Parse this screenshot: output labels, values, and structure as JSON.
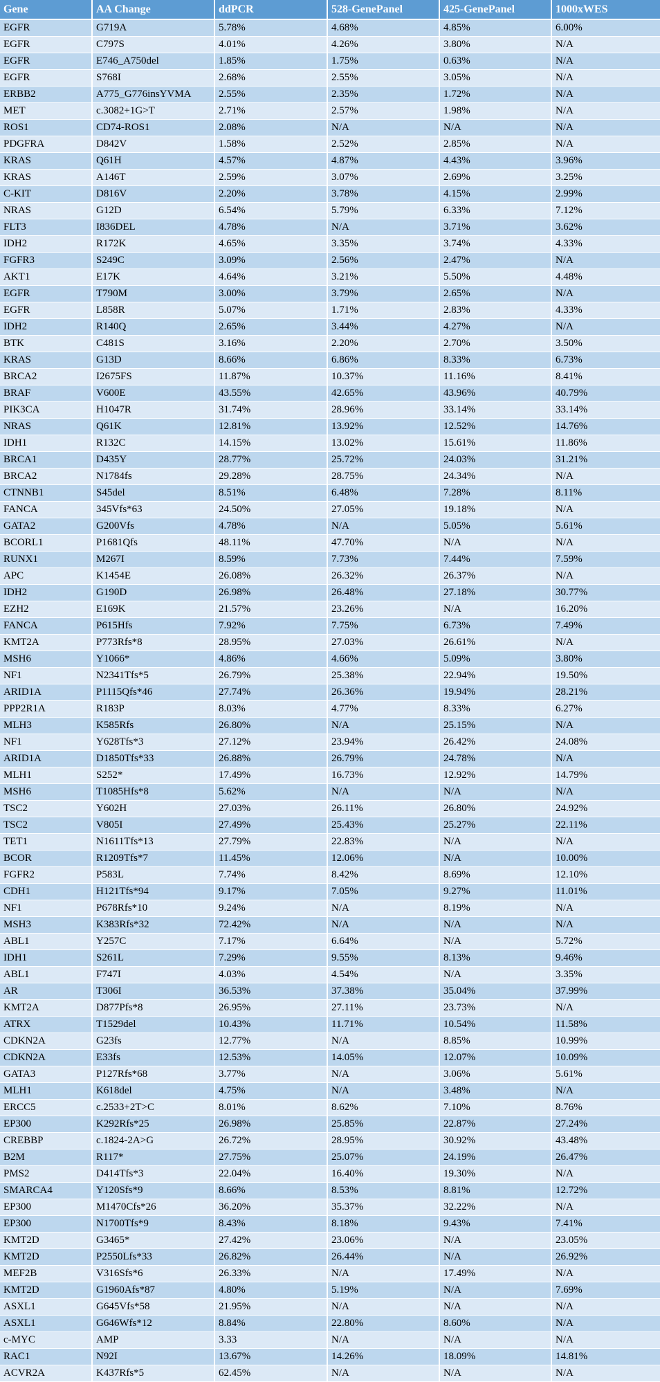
{
  "colors": {
    "header_bg": "#5d9cd3",
    "header_text": "#ffffff",
    "row_odd_bg": "#bdd7ee",
    "row_even_bg": "#dce9f6",
    "body_text": "#000000",
    "grid_border": "#ffffff"
  },
  "table": {
    "columns": [
      "Gene",
      "AA Change",
      "ddPCR",
      "528-GenePanel",
      "425-GenePanel",
      "1000xWES"
    ],
    "rows": [
      [
        "EGFR",
        "G719A",
        "5.78%",
        "4.68%",
        "4.85%",
        "6.00%"
      ],
      [
        "EGFR",
        "C797S",
        "4.01%",
        "4.26%",
        "3.80%",
        "N/A"
      ],
      [
        "EGFR",
        "E746_A750del",
        "1.85%",
        "1.75%",
        "0.63%",
        "N/A"
      ],
      [
        "EGFR",
        "S768I",
        "2.68%",
        "2.55%",
        "3.05%",
        "N/A"
      ],
      [
        "ERBB2",
        "A775_G776insYVMA",
        "2.55%",
        "2.35%",
        "1.72%",
        "N/A"
      ],
      [
        "MET",
        "c.3082+1G>T",
        "2.71%",
        "2.57%",
        "1.98%",
        "N/A"
      ],
      [
        "ROS1",
        "CD74-ROS1",
        "2.08%",
        "N/A",
        "N/A",
        "N/A"
      ],
      [
        "PDGFRA",
        "D842V",
        "1.58%",
        "2.52%",
        "2.85%",
        "N/A"
      ],
      [
        "KRAS",
        "Q61H",
        "4.57%",
        "4.87%",
        "4.43%",
        "3.96%"
      ],
      [
        "KRAS",
        "A146T",
        "2.59%",
        "3.07%",
        "2.69%",
        "3.25%"
      ],
      [
        "C-KIT",
        "D816V",
        "2.20%",
        "3.78%",
        "4.15%",
        "2.99%"
      ],
      [
        "NRAS",
        "G12D",
        "6.54%",
        "5.79%",
        "6.33%",
        "7.12%"
      ],
      [
        "FLT3",
        "I836DEL",
        "4.78%",
        "N/A",
        "3.71%",
        "3.62%"
      ],
      [
        "IDH2",
        "R172K",
        "4.65%",
        "3.35%",
        "3.74%",
        "4.33%"
      ],
      [
        "FGFR3",
        "S249C",
        "3.09%",
        "2.56%",
        "2.47%",
        "N/A"
      ],
      [
        "AKT1",
        "E17K",
        "4.64%",
        "3.21%",
        "5.50%",
        "4.48%"
      ],
      [
        "EGFR",
        "T790M",
        "3.00%",
        "3.79%",
        "2.65%",
        "N/A"
      ],
      [
        "EGFR",
        "L858R",
        "5.07%",
        "1.71%",
        "2.83%",
        "4.33%"
      ],
      [
        "IDH2",
        "R140Q",
        "2.65%",
        "3.44%",
        "4.27%",
        "N/A"
      ],
      [
        "BTK",
        "C481S",
        "3.16%",
        "2.20%",
        "2.70%",
        "3.50%"
      ],
      [
        "KRAS",
        "G13D",
        "8.66%",
        "6.86%",
        "8.33%",
        "6.73%"
      ],
      [
        "BRCA2",
        "I2675FS",
        "11.87%",
        "10.37%",
        "11.16%",
        "8.41%"
      ],
      [
        "BRAF",
        "V600E",
        "43.55%",
        "42.65%",
        "43.96%",
        "40.79%"
      ],
      [
        "PIK3CA",
        "H1047R",
        "31.74%",
        "28.96%",
        "33.14%",
        "33.14%"
      ],
      [
        "NRAS",
        "Q61K",
        "12.81%",
        "13.92%",
        "12.52%",
        "14.76%"
      ],
      [
        "IDH1",
        "R132C",
        "14.15%",
        "13.02%",
        "15.61%",
        "11.86%"
      ],
      [
        "BRCA1",
        "D435Y",
        "28.77%",
        "25.72%",
        "24.03%",
        "31.21%"
      ],
      [
        "BRCA2",
        "N1784fs",
        "29.28%",
        "28.75%",
        "24.34%",
        "N/A"
      ],
      [
        "CTNNB1",
        "S45del",
        "8.51%",
        "6.48%",
        "7.28%",
        "8.11%"
      ],
      [
        "FANCA",
        "345Vfs*63",
        "24.50%",
        "27.05%",
        "19.18%",
        "N/A"
      ],
      [
        "GATA2",
        "G200Vfs",
        "4.78%",
        "N/A",
        "5.05%",
        "5.61%"
      ],
      [
        "BCORL1",
        "P1681Qfs",
        "48.11%",
        "47.70%",
        "N/A",
        "N/A"
      ],
      [
        "RUNX1",
        "M267I",
        "8.59%",
        "7.73%",
        "7.44%",
        "7.59%"
      ],
      [
        "APC",
        "K1454E",
        "26.08%",
        "26.32%",
        "26.37%",
        "N/A"
      ],
      [
        "IDH2",
        "G190D",
        "26.98%",
        "26.48%",
        "27.18%",
        "30.77%"
      ],
      [
        "EZH2",
        "E169K",
        "21.57%",
        "23.26%",
        "N/A",
        "16.20%"
      ],
      [
        "FANCA",
        "P615Hfs",
        "7.92%",
        "7.75%",
        "6.73%",
        "7.49%"
      ],
      [
        "KMT2A",
        "P773Rfs*8",
        "28.95%",
        "27.03%",
        "26.61%",
        "N/A"
      ],
      [
        "MSH6",
        "Y1066*",
        "4.86%",
        "4.66%",
        "5.09%",
        "3.80%"
      ],
      [
        "NF1",
        "N2341Tfs*5",
        "26.79%",
        "25.38%",
        "22.94%",
        "19.50%"
      ],
      [
        "ARID1A",
        "P1115Qfs*46",
        "27.74%",
        "26.36%",
        "19.94%",
        "28.21%"
      ],
      [
        "PPP2R1A",
        "R183P",
        "8.03%",
        "4.77%",
        "8.33%",
        "6.27%"
      ],
      [
        "MLH3",
        "K585Rfs",
        "26.80%",
        "N/A",
        "25.15%",
        "N/A"
      ],
      [
        "NF1",
        "Y628Tfs*3",
        "27.12%",
        "23.94%",
        "26.42%",
        "24.08%"
      ],
      [
        "ARID1A",
        "D1850Tfs*33",
        "26.88%",
        "26.79%",
        "24.78%",
        "N/A"
      ],
      [
        "MLH1",
        "S252*",
        "17.49%",
        "16.73%",
        "12.92%",
        "14.79%"
      ],
      [
        "MSH6",
        "T1085Hfs*8",
        "5.62%",
        "N/A",
        "N/A",
        "N/A"
      ],
      [
        "TSC2",
        "Y602H",
        "27.03%",
        "26.11%",
        "26.80%",
        "24.92%"
      ],
      [
        "TSC2",
        "V805I",
        "27.49%",
        "25.43%",
        "25.27%",
        "22.11%"
      ],
      [
        "TET1",
        "N1611Tfs*13",
        "27.79%",
        "22.83%",
        "N/A",
        "N/A"
      ],
      [
        "BCOR",
        "R1209Tfs*7",
        "11.45%",
        "12.06%",
        "N/A",
        "10.00%"
      ],
      [
        "FGFR2",
        "P583L",
        "7.74%",
        "8.42%",
        "8.69%",
        "12.10%"
      ],
      [
        "CDH1",
        "H121Tfs*94",
        "9.17%",
        "7.05%",
        "9.27%",
        "11.01%"
      ],
      [
        "NF1",
        "P678Rfs*10",
        "9.24%",
        "N/A",
        "8.19%",
        "N/A"
      ],
      [
        "MSH3",
        "K383Rfs*32",
        "72.42%",
        "N/A",
        "N/A",
        "N/A"
      ],
      [
        "ABL1",
        "Y257C",
        "7.17%",
        "6.64%",
        "N/A",
        "5.72%"
      ],
      [
        "IDH1",
        "S261L",
        "7.29%",
        "9.55%",
        "8.13%",
        "9.46%"
      ],
      [
        "ABL1",
        "F747I",
        "4.03%",
        "4.54%",
        "N/A",
        "3.35%"
      ],
      [
        "AR",
        "T306I",
        "36.53%",
        "37.38%",
        "35.04%",
        "37.99%"
      ],
      [
        "KMT2A",
        "D877Pfs*8",
        "26.95%",
        "27.11%",
        "23.73%",
        "N/A"
      ],
      [
        "ATRX",
        "T1529del",
        "10.43%",
        "11.71%",
        "10.54%",
        "11.58%"
      ],
      [
        "CDKN2A",
        "G23fs",
        "12.77%",
        "N/A",
        "8.85%",
        "10.99%"
      ],
      [
        "CDKN2A",
        "E33fs",
        "12.53%",
        "14.05%",
        "12.07%",
        "10.09%"
      ],
      [
        "GATA3",
        "P127Rfs*68",
        "3.77%",
        "N/A",
        "3.06%",
        "5.61%"
      ],
      [
        "MLH1",
        "K618del",
        "4.75%",
        "N/A",
        "3.48%",
        "N/A"
      ],
      [
        "ERCC5",
        "c.2533+2T>C",
        "8.01%",
        "8.62%",
        "7.10%",
        "8.76%"
      ],
      [
        "EP300",
        "K292Rfs*25",
        "26.98%",
        "25.85%",
        "22.87%",
        "27.24%"
      ],
      [
        "CREBBP",
        "c.1824-2A>G",
        "26.72%",
        "28.95%",
        "30.92%",
        "43.48%"
      ],
      [
        "B2M",
        "R117*",
        "27.75%",
        "25.07%",
        "24.19%",
        "26.47%"
      ],
      [
        "PMS2",
        "D414Tfs*3",
        "22.04%",
        "16.40%",
        "19.30%",
        "N/A"
      ],
      [
        "SMARCA4",
        "Y120Sfs*9",
        "8.66%",
        "8.53%",
        "8.81%",
        "12.72%"
      ],
      [
        "EP300",
        "M1470Cfs*26",
        "36.20%",
        "35.37%",
        "32.22%",
        "N/A"
      ],
      [
        "EP300",
        "N1700Tfs*9",
        "8.43%",
        "8.18%",
        "9.43%",
        "7.41%"
      ],
      [
        "KMT2D",
        "G3465*",
        "27.42%",
        "23.06%",
        "N/A",
        "23.05%"
      ],
      [
        "KMT2D",
        "P2550Lfs*33",
        "26.82%",
        "26.44%",
        "N/A",
        "26.92%"
      ],
      [
        "MEF2B",
        "V316Sfs*6",
        "26.33%",
        "N/A",
        "17.49%",
        "N/A"
      ],
      [
        "KMT2D",
        "G1960Afs*87",
        "4.80%",
        "5.19%",
        "N/A",
        "7.69%"
      ],
      [
        "ASXL1",
        "G645Vfs*58",
        "21.95%",
        "N/A",
        "N/A",
        "N/A"
      ],
      [
        "ASXL1",
        "G646Wfs*12",
        "8.84%",
        "22.80%",
        "8.60%",
        "N/A"
      ],
      [
        "c-MYC",
        "AMP",
        "3.33",
        "N/A",
        "N/A",
        "N/A"
      ],
      [
        "RAC1",
        "N92I",
        "13.67%",
        "14.26%",
        "18.09%",
        "14.81%"
      ],
      [
        "ACVR2A",
        "K437Rfs*5",
        "62.45%",
        "N/A",
        "N/A",
        "N/A"
      ]
    ]
  }
}
